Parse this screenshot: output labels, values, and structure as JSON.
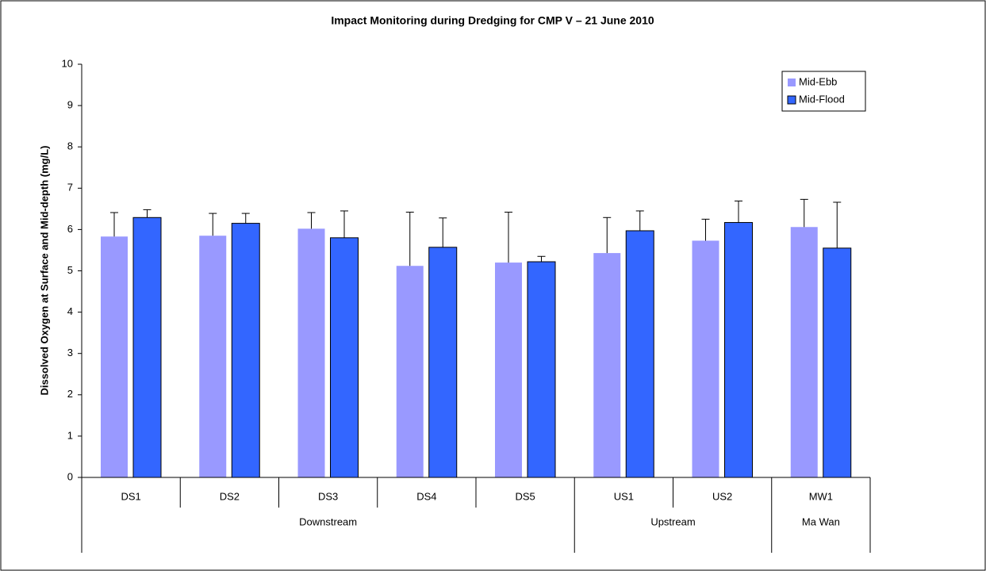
{
  "chart_data": {
    "type": "bar",
    "title": "Impact Monitoring during Dredging for CMP V – 21 June 2010",
    "y_label": "Dissolved Oxygen at Surface and Mid-depth (mg/L)",
    "categories": [
      {
        "label": "DS1",
        "group": "Downstream"
      },
      {
        "label": "DS2",
        "group": "Downstream"
      },
      {
        "label": "DS3",
        "group": "Downstream"
      },
      {
        "label": "DS4",
        "group": "Downstream"
      },
      {
        "label": "DS5",
        "group": "Downstream"
      },
      {
        "label": "US1",
        "group": "Upstream"
      },
      {
        "label": "US2",
        "group": "Upstream"
      },
      {
        "label": "MW1",
        "group": "Ma Wan"
      }
    ],
    "series": [
      {
        "name": "Mid-Ebb",
        "color": "#9999ff",
        "values": [
          5.83,
          5.85,
          6.02,
          5.12,
          5.2,
          5.43,
          5.73,
          6.06
        ],
        "errors": [
          0.58,
          0.54,
          0.39,
          1.3,
          1.22,
          0.86,
          0.52,
          0.67
        ]
      },
      {
        "name": "Mid-Flood",
        "color": "#3366ff",
        "values": [
          6.29,
          6.15,
          5.8,
          5.57,
          5.22,
          5.97,
          6.17,
          5.55
        ],
        "errors": [
          0.19,
          0.24,
          0.65,
          0.71,
          0.13,
          0.48,
          0.52,
          1.11
        ]
      }
    ],
    "ylim": [
      0,
      10
    ],
    "yticks": [
      0,
      1,
      2,
      3,
      4,
      5,
      6,
      7,
      8,
      9,
      10
    ],
    "grid": false,
    "legend": "top-right"
  }
}
